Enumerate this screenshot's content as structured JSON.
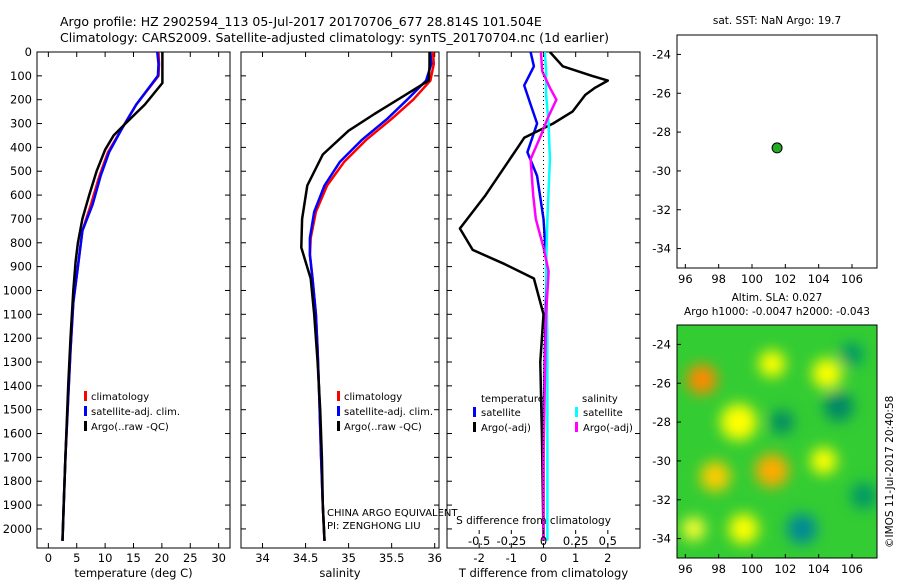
{
  "header": {
    "line1": "Argo profile: HZ 2902594_113 05-Jul-2017 20170706_677 28.814S 101.504E",
    "line2": "Climatology: CARS2009. Satellite-adjusted climatology: synTS_20170704.nc (1d earlier)"
  },
  "watermark": "©IMOS 11-Jul-2017 20:40:58",
  "chart_data": [
    {
      "id": "temperature",
      "type": "line",
      "xlabel": "temperature (deg C)",
      "ylabel": "",
      "xlim": [
        -2,
        32
      ],
      "ylim": [
        2080,
        0
      ],
      "xticks": [
        "0",
        "5",
        "10",
        "15",
        "20",
        "25",
        "30"
      ],
      "xtick_values": [
        0,
        5,
        10,
        15,
        20,
        25,
        30
      ],
      "yticks": [
        "0",
        "100",
        "200",
        "300",
        "400",
        "500",
        "600",
        "700",
        "800",
        "900",
        "1000",
        "1100",
        "1200",
        "1300",
        "1400",
        "1500",
        "1600",
        "1700",
        "1800",
        "1900",
        "2000"
      ],
      "legend": [
        "climatology",
        "satellite-adj. clim.",
        "Argo(..raw -QC)"
      ],
      "series": [
        {
          "name": "climatology",
          "color": "#ff0000",
          "points": [
            [
              19.4,
              0
            ],
            [
              19.5,
              50
            ],
            [
              19.4,
              100
            ],
            [
              15.5,
              220
            ],
            [
              13,
              320
            ],
            [
              10.5,
              420
            ],
            [
              9,
              520
            ],
            [
              7.5,
              640
            ],
            [
              6,
              750
            ],
            [
              5.2,
              900
            ],
            [
              4.4,
              1050
            ],
            [
              3.9,
              1250
            ],
            [
              3.5,
              1450
            ],
            [
              3,
              1700
            ],
            [
              2.7,
              1900
            ],
            [
              2.5,
              2050
            ]
          ]
        },
        {
          "name": "satellite-adj. clim.",
          "color": "#0000ff",
          "points": [
            [
              19.2,
              0
            ],
            [
              19.4,
              50
            ],
            [
              19.3,
              100
            ],
            [
              15.5,
              220
            ],
            [
              13,
              320
            ],
            [
              10.7,
              420
            ],
            [
              9.2,
              520
            ],
            [
              7.8,
              640
            ],
            [
              6,
              750
            ],
            [
              5.2,
              900
            ],
            [
              4.4,
              1050
            ],
            [
              3.9,
              1250
            ],
            [
              3.5,
              1450
            ],
            [
              3,
              1700
            ],
            [
              2.7,
              1900
            ],
            [
              2.5,
              2050
            ]
          ]
        },
        {
          "name": "Argo(..raw -QC)",
          "color": "#000000",
          "points": [
            [
              20.1,
              0
            ],
            [
              20.1,
              50
            ],
            [
              20.1,
              130
            ],
            [
              17,
              220
            ],
            [
              14,
              290
            ],
            [
              11.5,
              350
            ],
            [
              10,
              410
            ],
            [
              8.5,
              500
            ],
            [
              7.2,
              600
            ],
            [
              6,
              700
            ],
            [
              5.2,
              800
            ],
            [
              4.8,
              880
            ],
            [
              4.4,
              1000
            ],
            [
              3.9,
              1200
            ],
            [
              3.5,
              1400
            ],
            [
              3,
              1700
            ],
            [
              2.7,
              1900
            ],
            [
              2.5,
              2050
            ]
          ]
        }
      ]
    },
    {
      "id": "salinity",
      "type": "line",
      "xlabel": "salinity",
      "ylabel": "",
      "xlim": [
        33.75,
        36.05
      ],
      "ylim": [
        2080,
        0
      ],
      "xticks": [
        "34",
        "34.5",
        "35",
        "35.5",
        "36"
      ],
      "xtick_values": [
        34,
        34.5,
        35,
        35.5,
        36
      ],
      "legend": [
        "climatology",
        "satellite-adj. clim.",
        "Argo(..raw -QC)"
      ],
      "annotation": [
        "CHINA ARGO EQUIVALENT",
        "PI: ZENGHONG LIU"
      ],
      "series": [
        {
          "name": "climatology",
          "color": "#ff0000",
          "points": [
            [
              35.98,
              0
            ],
            [
              35.99,
              50
            ],
            [
              35.95,
              120
            ],
            [
              35.75,
              200
            ],
            [
              35.5,
              280
            ],
            [
              35.2,
              370
            ],
            [
              34.95,
              460
            ],
            [
              34.75,
              560
            ],
            [
              34.62,
              670
            ],
            [
              34.56,
              780
            ],
            [
              34.55,
              850
            ],
            [
              34.58,
              950
            ],
            [
              34.62,
              1100
            ],
            [
              34.64,
              1250
            ],
            [
              34.66,
              1450
            ],
            [
              34.68,
              1700
            ],
            [
              34.7,
              1900
            ],
            [
              34.72,
              2050
            ]
          ]
        },
        {
          "name": "satellite-adj. clim.",
          "color": "#0000ff",
          "points": [
            [
              35.95,
              0
            ],
            [
              35.96,
              50
            ],
            [
              35.9,
              120
            ],
            [
              35.68,
              200
            ],
            [
              35.45,
              280
            ],
            [
              35.15,
              370
            ],
            [
              34.9,
              460
            ],
            [
              34.72,
              560
            ],
            [
              34.6,
              670
            ],
            [
              34.55,
              780
            ],
            [
              34.55,
              850
            ],
            [
              34.58,
              950
            ],
            [
              34.62,
              1100
            ],
            [
              34.64,
              1250
            ],
            [
              34.66,
              1450
            ],
            [
              34.68,
              1700
            ],
            [
              34.7,
              1900
            ],
            [
              34.72,
              2050
            ]
          ]
        },
        {
          "name": "Argo(..raw -QC)",
          "color": "#000000",
          "points": [
            [
              35.94,
              0
            ],
            [
              35.94,
              60
            ],
            [
              35.93,
              120
            ],
            [
              35.3,
              260
            ],
            [
              35.0,
              330
            ],
            [
              34.7,
              430
            ],
            [
              34.52,
              560
            ],
            [
              34.46,
              700
            ],
            [
              34.45,
              820
            ],
            [
              34.5,
              880
            ],
            [
              34.56,
              950
            ],
            [
              34.6,
              1100
            ],
            [
              34.64,
              1300
            ],
            [
              34.67,
              1500
            ],
            [
              34.69,
              1700
            ],
            [
              34.7,
              1900
            ],
            [
              34.72,
              2050
            ]
          ]
        }
      ]
    },
    {
      "id": "difference",
      "type": "line",
      "xlabel": "T difference from climatology",
      "x2label": "S difference from climatology",
      "xlim": [
        -3,
        3
      ],
      "x2lim": [
        -0.75,
        0.75
      ],
      "ylim": [
        2080,
        0
      ],
      "xticks": [
        "-2",
        "-1",
        "0",
        "1",
        "2"
      ],
      "xtick_values": [
        -2,
        -1,
        0,
        1,
        2
      ],
      "x2ticks": [
        "-0.5",
        "-0.25",
        "0",
        "0.25",
        "0.5"
      ],
      "x2tick_values": [
        -0.5,
        -0.25,
        0,
        0.25,
        0.5
      ],
      "legend_left_title": "temperature",
      "legend_right_title": "salinity",
      "legend": [
        "satellite",
        "Argo(-adj)",
        "satellite",
        "Argo(-adj)"
      ],
      "series": [
        {
          "name": "T satellite",
          "color": "#0000ff",
          "axis": "T",
          "points": [
            [
              -0.4,
              0
            ],
            [
              -0.3,
              60
            ],
            [
              -0.6,
              140
            ],
            [
              -0.4,
              220
            ],
            [
              -0.2,
              300
            ],
            [
              -0.5,
              420
            ],
            [
              -0.2,
              520
            ],
            [
              0,
              700
            ],
            [
              0.1,
              900
            ],
            [
              0.05,
              1200
            ],
            [
              0,
              1600
            ],
            [
              0,
              2050
            ]
          ]
        },
        {
          "name": "T Argo(-adj)",
          "color": "#000000",
          "axis": "T",
          "points": [
            [
              0.2,
              0
            ],
            [
              0.6,
              60
            ],
            [
              1.5,
              100
            ],
            [
              2.0,
              120
            ],
            [
              1.6,
              150
            ],
            [
              1.3,
              180
            ],
            [
              0.9,
              250
            ],
            [
              0.3,
              300
            ],
            [
              -0.6,
              360
            ],
            [
              -0.8,
              400
            ],
            [
              -1.8,
              600
            ],
            [
              -2.6,
              740
            ],
            [
              -2.2,
              830
            ],
            [
              -1.2,
              890
            ],
            [
              -0.3,
              950
            ],
            [
              0,
              1100
            ],
            [
              -0.1,
              1300
            ],
            [
              -0.05,
              1600
            ],
            [
              0,
              2050
            ]
          ]
        },
        {
          "name": "S satellite",
          "color": "#00ffff",
          "axis": "S",
          "points": [
            [
              0.01,
              0
            ],
            [
              0.02,
              80
            ],
            [
              0.02,
              180
            ],
            [
              0.04,
              300
            ],
            [
              0.05,
              450
            ],
            [
              0.03,
              700
            ],
            [
              0.02,
              900
            ],
            [
              0.03,
              1200
            ],
            [
              0.03,
              1600
            ],
            [
              0.03,
              2050
            ]
          ]
        },
        {
          "name": "S Argo(-adj)",
          "color": "#ff00ff",
          "axis": "S",
          "points": [
            [
              -0.02,
              0
            ],
            [
              -0.01,
              80
            ],
            [
              0.05,
              150
            ],
            [
              0.1,
              200
            ],
            [
              0.03,
              280
            ],
            [
              -0.02,
              350
            ],
            [
              -0.1,
              450
            ],
            [
              -0.08,
              600
            ],
            [
              -0.06,
              700
            ],
            [
              0.0,
              820
            ],
            [
              0.04,
              920
            ],
            [
              0.02,
              1100
            ],
            [
              0.01,
              1400
            ],
            [
              0,
              1700
            ],
            [
              0,
              2050
            ]
          ]
        }
      ]
    },
    {
      "id": "sst-map",
      "type": "scatter",
      "title": "sat. SST: NaN Argo: 19.7",
      "xlim": [
        95.5,
        107.5
      ],
      "ylim": [
        -35,
        -23
      ],
      "xticks": [
        "96",
        "98",
        "100",
        "102",
        "104",
        "106"
      ],
      "xtick_values": [
        96,
        98,
        100,
        102,
        104,
        106
      ],
      "yticks": [
        "-24",
        "-26",
        "-28",
        "-30",
        "-32",
        "-34"
      ],
      "ytick_values": [
        -24,
        -26,
        -28,
        -30,
        -32,
        -34
      ],
      "points": [
        {
          "x": 101.504,
          "y": -28.814,
          "color": "#22aa22"
        }
      ]
    },
    {
      "id": "sla-map",
      "type": "heatmap",
      "title_line1": "Altim. SLA: 0.027",
      "title_line2": "Argo h1000: -0.0047 h2000: -0.043",
      "xlim": [
        95.5,
        107.5
      ],
      "ylim": [
        -35,
        -23
      ],
      "xticks": [
        "96",
        "98",
        "100",
        "102",
        "104",
        "106"
      ],
      "xtick_values": [
        96,
        98,
        100,
        102,
        104,
        106
      ],
      "yticks": [
        "-24",
        "-26",
        "-28",
        "-30",
        "-32",
        "-34"
      ],
      "ytick_values": [
        -24,
        -26,
        -28,
        -30,
        -32,
        -34
      ],
      "base_color": "#33cc33",
      "blobs": [
        {
          "x": 97.0,
          "y": -25.8,
          "r": 0.9,
          "color": "#ff8800"
        },
        {
          "x": 104.5,
          "y": -25.5,
          "r": 0.9,
          "color": "#ffff00"
        },
        {
          "x": 101.2,
          "y": -25.0,
          "r": 0.8,
          "color": "#ffff00"
        },
        {
          "x": 99.2,
          "y": -28.0,
          "r": 1.1,
          "color": "#ffff00"
        },
        {
          "x": 105.2,
          "y": -27.2,
          "r": 0.9,
          "color": "#008866"
        },
        {
          "x": 101.8,
          "y": -28.0,
          "r": 0.7,
          "color": "#008866"
        },
        {
          "x": 97.8,
          "y": -30.8,
          "r": 0.9,
          "color": "#ffcc00"
        },
        {
          "x": 101.2,
          "y": -30.5,
          "r": 1.0,
          "color": "#ffaa00"
        },
        {
          "x": 104.3,
          "y": -30.0,
          "r": 0.8,
          "color": "#ffff00"
        },
        {
          "x": 106.7,
          "y": -31.8,
          "r": 0.8,
          "color": "#009966"
        },
        {
          "x": 99.5,
          "y": -33.5,
          "r": 0.9,
          "color": "#ffff00"
        },
        {
          "x": 103.0,
          "y": -33.5,
          "r": 0.9,
          "color": "#008899"
        },
        {
          "x": 106.0,
          "y": -24.5,
          "r": 0.7,
          "color": "#009966"
        },
        {
          "x": 96.5,
          "y": -33.5,
          "r": 0.7,
          "color": "#ffff33"
        }
      ]
    }
  ]
}
